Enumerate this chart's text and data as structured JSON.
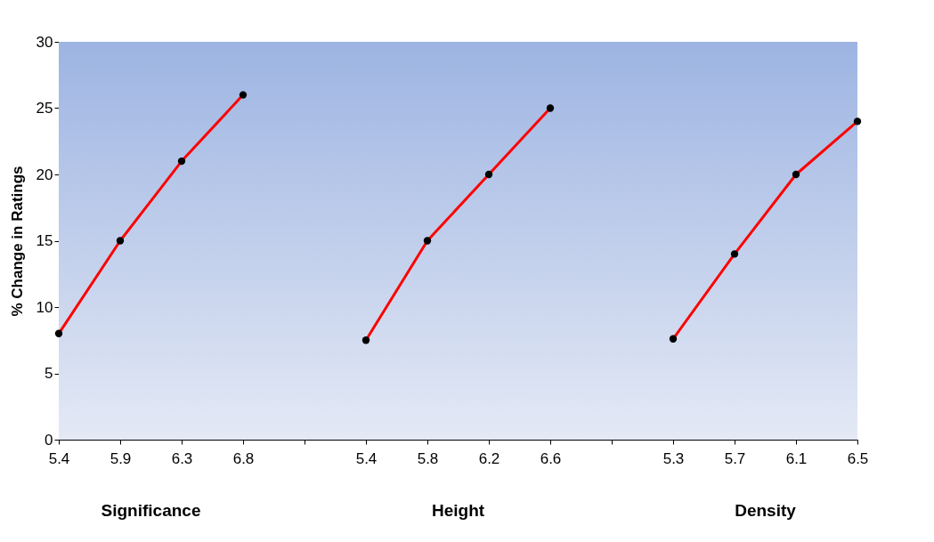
{
  "chart_data": {
    "type": "line",
    "ylabel": "% Change in Ratings",
    "categories": [
      "5.4",
      "5.9",
      "6.3",
      "6.8",
      null,
      "5.4",
      "5.8",
      "6.2",
      "6.6",
      null,
      "5.3",
      "5.7",
      "6.1",
      "6.5"
    ],
    "series": [
      {
        "color": "#ff0000",
        "values": [
          8,
          15,
          21,
          26,
          null,
          7.5,
          15,
          20,
          25,
          null,
          7.6,
          14,
          20,
          24
        ]
      }
    ],
    "ylim": [
      0,
      30
    ],
    "yticks": [
      0,
      5,
      10,
      15,
      20,
      25,
      30
    ],
    "grid": false,
    "marker": "circle",
    "line_style": "solid",
    "annotations": [
      "Significance",
      "Height",
      "Density"
    ]
  }
}
